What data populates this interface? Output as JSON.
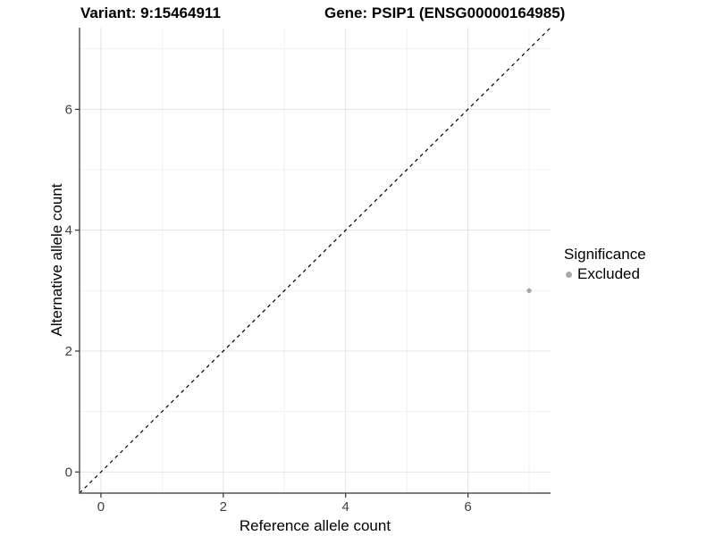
{
  "header": {
    "title_left": "Variant: 9:15464911",
    "title_right": "Gene: PSIP1 (ENSG00000164985)"
  },
  "chart_data": {
    "type": "scatter",
    "xlabel": "Reference allele count",
    "ylabel": "Alternative allele count",
    "xlim": [
      -0.35,
      7.35
    ],
    "ylim": [
      -0.35,
      7.35
    ],
    "x_major_ticks": [
      0,
      2,
      4,
      6
    ],
    "y_major_ticks": [
      0,
      2,
      4,
      6
    ],
    "x_minor_ticks": [
      1,
      3,
      5,
      7
    ],
    "y_minor_ticks": [
      1,
      3,
      5,
      7
    ],
    "grid": "on",
    "points": [
      {
        "x": 7,
        "y": 3,
        "significance": "Excluded"
      }
    ],
    "identity_line": {
      "equation": "y = x",
      "style": "dashed",
      "color": "#000000"
    },
    "legend": {
      "title": "Significance",
      "position": "right",
      "items": [
        {
          "label": "Excluded",
          "color": "#A8A8A8"
        }
      ]
    }
  },
  "colors": {
    "background": "#FFFFFF",
    "grid_major": "#E4E4E4",
    "grid_minor": "#F1F1F1",
    "axis_line": "#555555",
    "tick_mark": "#333333",
    "tick_label": "#404040",
    "point": "#A8A8A8"
  }
}
